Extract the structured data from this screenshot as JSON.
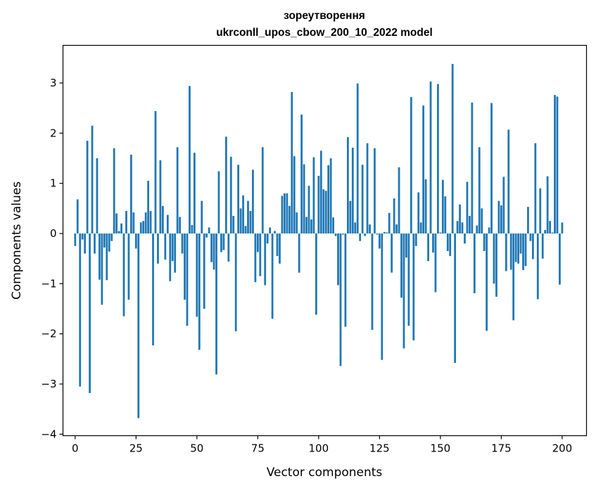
{
  "chart_data": {
    "type": "bar",
    "title": "зореутворення",
    "subtitle": "ukrconll_upos_cbow_200_10_2022 model",
    "xlabel": "Vector components",
    "ylabel": "Components values",
    "xlim": [
      -5,
      210
    ],
    "ylim": [
      -4.03,
      3.75
    ],
    "xticks": [
      0,
      25,
      50,
      75,
      100,
      125,
      150,
      175,
      200
    ],
    "yticks": [
      -4,
      -3,
      -2,
      -1,
      0,
      1,
      2,
      3
    ],
    "xtick_labels": [
      "0",
      "25",
      "50",
      "75",
      "100",
      "125",
      "150",
      "175",
      "200"
    ],
    "ytick_labels": [
      "−4",
      "−3",
      "−2",
      "−1",
      "0",
      "1",
      "2",
      "3"
    ],
    "bar_color": "#1f77b4",
    "grid": false,
    "values": [
      -0.25,
      0.68,
      -3.05,
      -0.12,
      -0.4,
      1.85,
      -3.18,
      2.15,
      -0.4,
      1.5,
      -0.92,
      -1.42,
      -0.28,
      -0.93,
      -0.36,
      -0.15,
      1.7,
      0.4,
      0.05,
      0.2,
      -1.65,
      0.45,
      -1.32,
      1.57,
      0.42,
      -0.3,
      -3.68,
      0.22,
      0.25,
      0.42,
      1.05,
      0.45,
      -2.23,
      2.44,
      -0.6,
      1.46,
      0.55,
      -0.52,
      0.37,
      -0.95,
      -0.55,
      -0.78,
      1.72,
      0.33,
      -0.4,
      -1.32,
      -1.84,
      2.94,
      0.17,
      1.61,
      -1.66,
      -2.32,
      0.65,
      -1.5,
      -0.08,
      0.12,
      -0.57,
      -0.72,
      -2.81,
      1.24,
      -0.37,
      -0.33,
      1.93,
      -0.56,
      1.53,
      0.35,
      -1.95,
      1.37,
      0.5,
      0.76,
      0.15,
      0.65,
      0.45,
      1.27,
      -0.97,
      -0.37,
      -0.85,
      1.72,
      -1.03,
      -0.2,
      0.12,
      -1.7,
      0.05,
      -0.45,
      -0.6,
      0.75,
      0.8,
      0.8,
      0.55,
      2.82,
      1.54,
      0.42,
      -0.78,
      2.37,
      1.38,
      0.33,
      0.95,
      0.28,
      1.52,
      -1.62,
      1.15,
      1.65,
      0.88,
      0.85,
      1.36,
      1.5,
      0.32,
      -0.05,
      -1.03,
      -2.64,
      -0.02,
      -1.86,
      1.92,
      0.65,
      1.71,
      0.22,
      2.99,
      -0.15,
      1.37,
      -0.05,
      1.8,
      0.18,
      -1.92,
      1.7,
      -0.02,
      -0.3,
      -2.52,
      0.03,
      0.02,
      0.41,
      -0.78,
      0.7,
      0.18,
      1.32,
      -1.28,
      -2.29,
      -0.48,
      -1.84,
      2.72,
      -2.13,
      -0.25,
      0.82,
      0.22,
      2.55,
      1.08,
      -0.55,
      3.03,
      -0.38,
      -1.17,
      2.98,
      0.02,
      1.07,
      0.74,
      -0.35,
      -0.45,
      3.38,
      -2.58,
      0.25,
      0.58,
      0.22,
      -0.2,
      1.03,
      0.35,
      2.61,
      -1.19,
      0.16,
      1.72,
      0.5,
      -0.35,
      -1.94,
      0.12,
      2.6,
      -1.0,
      -1.26,
      0.65,
      0.56,
      1.13,
      -0.75,
      2.07,
      -0.72,
      -1.73,
      -0.57,
      -0.6,
      -0.4,
      -0.73,
      -0.65,
      0.53,
      -0.15,
      -0.51,
      1.8,
      -1.31,
      0.9,
      -0.5,
      0.07,
      1.14,
      0.25,
      0.02,
      2.76,
      2.73,
      -1.02,
      0.22
    ]
  }
}
